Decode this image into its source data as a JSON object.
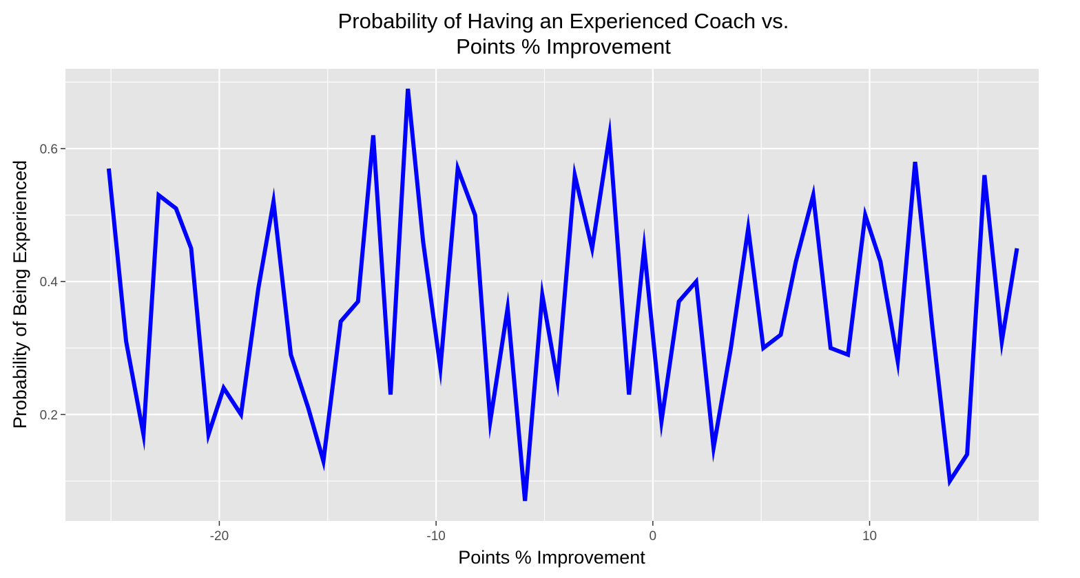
{
  "chart_data": {
    "type": "line",
    "title": "Probability of Having an Experienced Coach vs. Points % Improvement",
    "title_lines": [
      "Probability of Having an Experienced Coach vs.",
      "Points % Improvement"
    ],
    "xlabel": "Points % Improvement",
    "ylabel": "Probability of Being Experienced",
    "xlim": [
      -27.1,
      17.8
    ],
    "ylim": [
      0.04,
      0.72
    ],
    "x_ticks": [
      -20,
      -10,
      0,
      10
    ],
    "x_tick_labels": [
      "-20",
      "-10",
      "0",
      "10"
    ],
    "y_ticks": [
      0.2,
      0.4,
      0.6
    ],
    "y_tick_labels": [
      "0.2",
      "0.4",
      "0.6"
    ],
    "grid": true,
    "legend": "none",
    "background_color": "#e5e5e5",
    "grid_color": "#ffffff",
    "line_color": "#0000ff",
    "series": [
      {
        "x": [
          -25.1,
          -24.3,
          -23.5,
          -22.8,
          -22.0,
          -21.3,
          -20.5,
          -19.8,
          -19.0,
          -18.2,
          -17.5,
          -16.7,
          -15.9,
          -15.2,
          -14.4,
          -13.6,
          -12.9,
          -12.1,
          -11.3,
          -10.6,
          -9.8,
          -9.0,
          -8.2,
          -7.5,
          -6.7,
          -5.9,
          -5.1,
          -4.4,
          -3.6,
          -2.8,
          -2.0,
          -1.1,
          -0.4,
          0.4,
          1.2,
          2.0,
          2.8,
          3.6,
          4.4,
          5.1,
          5.9,
          6.6,
          7.4,
          8.2,
          9.0,
          9.8,
          10.5,
          11.3,
          12.1,
          12.9,
          13.7,
          14.5,
          15.3,
          16.1,
          16.8
        ],
        "y": [
          0.57,
          0.31,
          0.17,
          0.53,
          0.51,
          0.45,
          0.17,
          0.24,
          0.2,
          0.39,
          0.52,
          0.29,
          0.21,
          0.13,
          0.34,
          0.37,
          0.62,
          0.23,
          0.69,
          0.46,
          0.27,
          0.57,
          0.5,
          0.19,
          0.36,
          0.07,
          0.38,
          0.25,
          0.56,
          0.45,
          0.62,
          0.23,
          0.45,
          0.19,
          0.37,
          0.4,
          0.15,
          0.3,
          0.48,
          0.3,
          0.32,
          0.43,
          0.53,
          0.3,
          0.29,
          0.5,
          0.43,
          0.28,
          0.58,
          0.33,
          0.1,
          0.14,
          0.56,
          0.31,
          0.45
        ]
      }
    ]
  }
}
